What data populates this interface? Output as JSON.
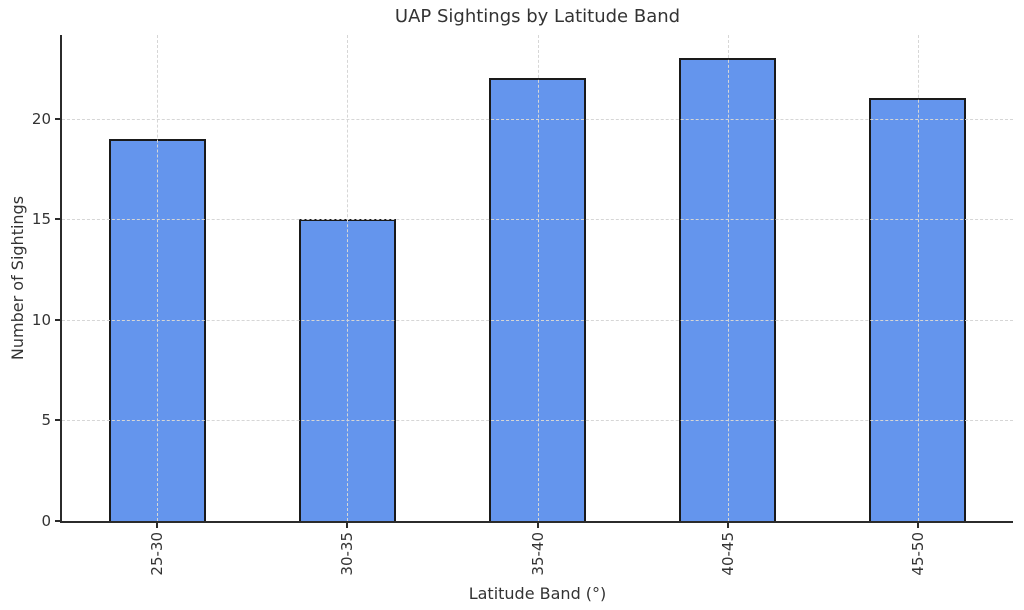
{
  "chart_data": {
    "type": "bar",
    "title": "UAP Sightings by Latitude Band",
    "xlabel": "Latitude Band (°)",
    "ylabel": "Number of Sightings",
    "categories": [
      "25-30",
      "30-35",
      "35-40",
      "40-45",
      "45-50"
    ],
    "values": [
      19,
      15,
      22,
      23,
      21
    ],
    "yticks": [
      0,
      5,
      10,
      15,
      20
    ],
    "ylim": [
      0,
      24.15
    ],
    "bar_color": "#6495ED",
    "bar_edge_color": "#1a1a1a",
    "grid": "dashed, both axes, drawn above bars",
    "legend": "none",
    "x_tick_label_rotation": 90
  }
}
